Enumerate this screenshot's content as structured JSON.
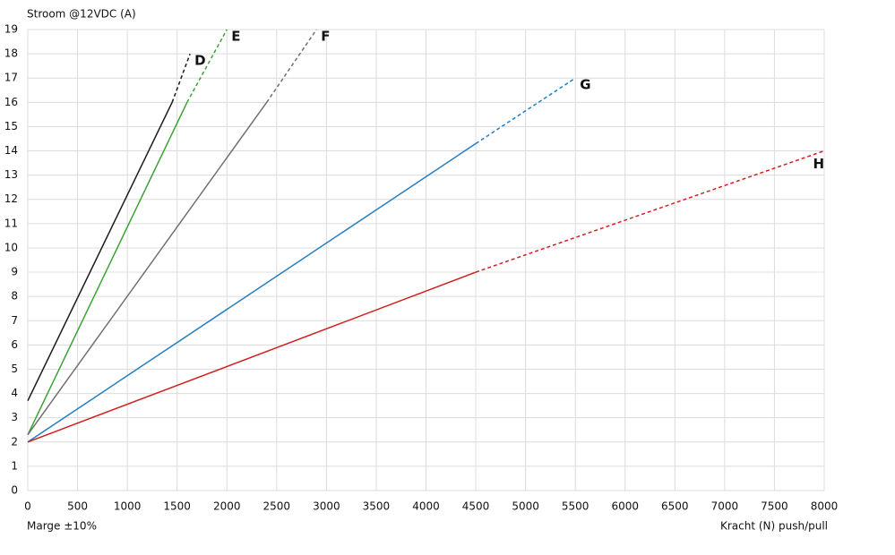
{
  "chart_data": {
    "type": "line",
    "y_label": "Stroom @12VDC (A)",
    "x_label": "Kracht (N) push/pull",
    "annotation": "Marge ±10%",
    "xlim": [
      0,
      8000
    ],
    "xticks": [
      0,
      500,
      1000,
      1500,
      2000,
      2500,
      3000,
      3500,
      4000,
      4500,
      5000,
      5500,
      6000,
      6500,
      7000,
      7500,
      8000
    ],
    "ylim": [
      0,
      19
    ],
    "yticks": [
      0,
      1,
      2,
      3,
      4,
      5,
      6,
      7,
      8,
      9,
      10,
      11,
      12,
      13,
      14,
      15,
      16,
      17,
      18,
      19
    ],
    "grid": true,
    "segment_styles": [
      "solid",
      "dashed"
    ],
    "series": [
      {
        "name": "D",
        "color": "#1a1a1a",
        "x": [
          0,
          1450,
          1630
        ],
        "values": [
          3.7,
          16,
          18
        ]
      },
      {
        "name": "E",
        "color": "#3aa335",
        "x": [
          0,
          1600,
          2000
        ],
        "values": [
          2.3,
          16,
          19
        ]
      },
      {
        "name": "F",
        "color": "#707070",
        "x": [
          0,
          2400,
          2900
        ],
        "values": [
          2.3,
          16,
          19
        ]
      },
      {
        "name": "G",
        "color": "#1f7ec0",
        "x": [
          0,
          4500,
          5500
        ],
        "values": [
          2,
          14.3,
          17
        ]
      },
      {
        "name": "H",
        "color": "#d02020",
        "x": [
          0,
          4500,
          8000
        ],
        "values": [
          2,
          9,
          14
        ]
      }
    ]
  }
}
